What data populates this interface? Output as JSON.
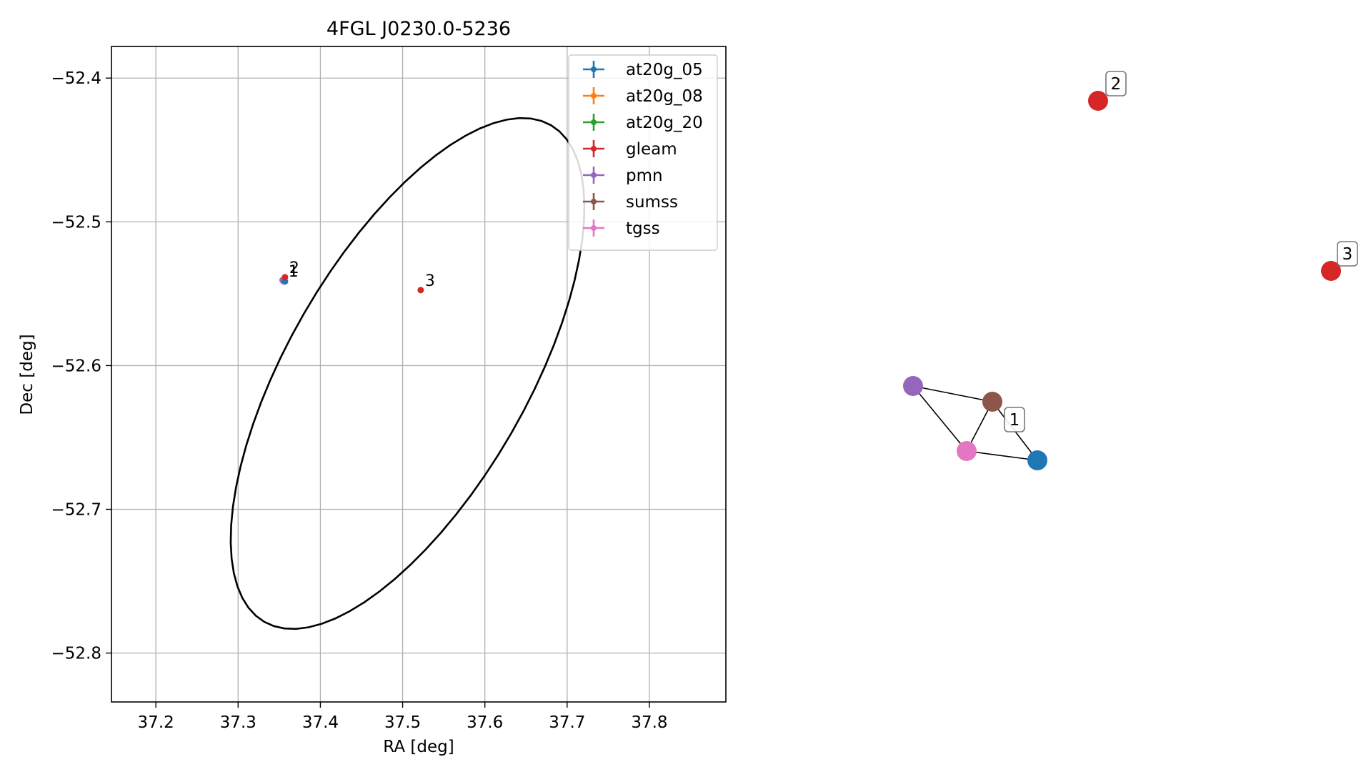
{
  "chart_data": [
    {
      "type": "scatter",
      "title": "4FGL J0230.0-5236",
      "xlabel": "RA [deg]",
      "ylabel": "Dec [deg]",
      "xlim": [
        37.146,
        37.893
      ],
      "ylim": [
        -52.834,
        -52.378
      ],
      "y_inverted": false,
      "grid": true,
      "legend_position": "upper-right",
      "x_ticks": [
        37.2,
        37.3,
        37.4,
        37.5,
        37.6,
        37.7,
        37.8
      ],
      "x_tick_labels": [
        "37.2",
        "37.3",
        "37.4",
        "37.5",
        "37.6",
        "37.7",
        "37.8"
      ],
      "y_ticks": [
        -52.4,
        -52.5,
        -52.6,
        -52.7,
        -52.8
      ],
      "y_tick_labels": [
        "−52.4",
        "−52.5",
        "−52.6",
        "−52.7",
        "−52.8"
      ],
      "legend": [
        {
          "name": "at20g_05",
          "color": "#1f77b4"
        },
        {
          "name": "at20g_08",
          "color": "#ff7f0e"
        },
        {
          "name": "at20g_20",
          "color": "#2ca02c"
        },
        {
          "name": "gleam",
          "color": "#d62728"
        },
        {
          "name": "pmn",
          "color": "#9467bd"
        },
        {
          "name": "sumss",
          "color": "#8c564b"
        },
        {
          "name": "tgss",
          "color": "#e377c2"
        }
      ],
      "points": [
        {
          "series": "tgss",
          "color": "#e377c2",
          "x": 37.355,
          "y": -52.5415
        },
        {
          "series": "sumss",
          "color": "#8c564b",
          "x": 37.356,
          "y": -52.5405
        },
        {
          "series": "pmn",
          "color": "#9467bd",
          "x": 37.354,
          "y": -52.5405
        },
        {
          "series": "at20g_05",
          "color": "#1f77b4",
          "x": 37.357,
          "y": -52.5415
        },
        {
          "series": "gleam",
          "color": "#d62728",
          "x": 37.357,
          "y": -52.5385
        },
        {
          "series": "gleam",
          "color": "#d62728",
          "x": 37.522,
          "y": -52.5475
        }
      ],
      "point_labels": [
        {
          "text": "2",
          "x": 37.357,
          "y": -52.5385
        },
        {
          "text": "1",
          "x": 37.356,
          "y": -52.541
        },
        {
          "text": "3",
          "x": 37.522,
          "y": -52.5475
        }
      ],
      "ellipse": {
        "center_x": 37.506,
        "center_y": -52.6055,
        "semi_major": 0.1455,
        "semi_minor": 0.1995,
        "angle_deg": 30
      }
    },
    {
      "type": "network",
      "nodes": [
        {
          "id": "pmn",
          "color": "#9467bd"
        },
        {
          "id": "sumss",
          "color": "#8c564b"
        },
        {
          "id": "tgss",
          "color": "#e377c2"
        },
        {
          "id": "at20g_05",
          "color": "#1f77b4"
        },
        {
          "id": "gleam_2",
          "color": "#d62728"
        },
        {
          "id": "gleam_3",
          "color": "#d62728"
        }
      ],
      "edges": [
        [
          "pmn",
          "sumss"
        ],
        [
          "pmn",
          "tgss"
        ],
        [
          "sumss",
          "tgss"
        ],
        [
          "sumss",
          "at20g_05"
        ],
        [
          "tgss",
          "at20g_05"
        ]
      ],
      "labels": [
        {
          "text": "1",
          "node": "sumss"
        },
        {
          "text": "2",
          "node": "gleam_2"
        },
        {
          "text": "3",
          "node": "gleam_3"
        }
      ]
    }
  ]
}
